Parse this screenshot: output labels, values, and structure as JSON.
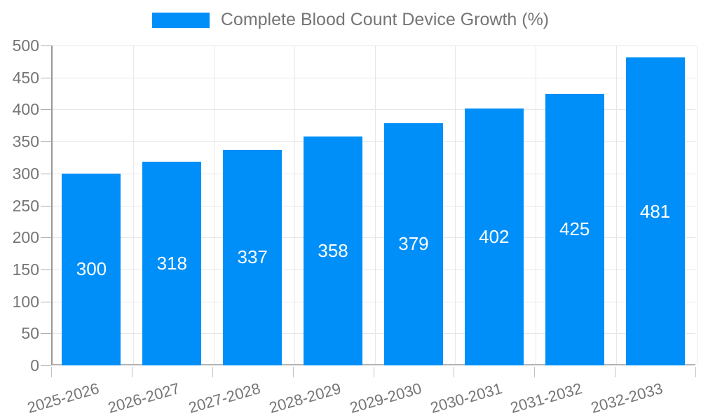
{
  "chart_data": {
    "type": "bar",
    "title": "Complete Blood Count Device Growth (%)",
    "categories": [
      "2025-2026",
      "2026-2027",
      "2027-2028",
      "2028-2029",
      "2029-2030",
      "2030-2031",
      "2031-2032",
      "2032-2033"
    ],
    "values": [
      300,
      318,
      337,
      358,
      379,
      402,
      425,
      481
    ],
    "xlabel": "",
    "ylabel": "",
    "ylim": [
      0,
      500
    ],
    "ytick_step": 50,
    "yticks": [
      0,
      50,
      100,
      150,
      200,
      250,
      300,
      350,
      400,
      450,
      500
    ],
    "legend_position": "top",
    "grid": true,
    "value_labels_position": "inside-middle",
    "colors": {
      "bar": "#008FF9",
      "value_label": "#ffffff",
      "axis_text": "#757575",
      "legend_text": "#757575",
      "gridline": "#e7e7e7",
      "y_axis_line": "#989898",
      "x_axis_line": "#b3b3b3"
    }
  }
}
